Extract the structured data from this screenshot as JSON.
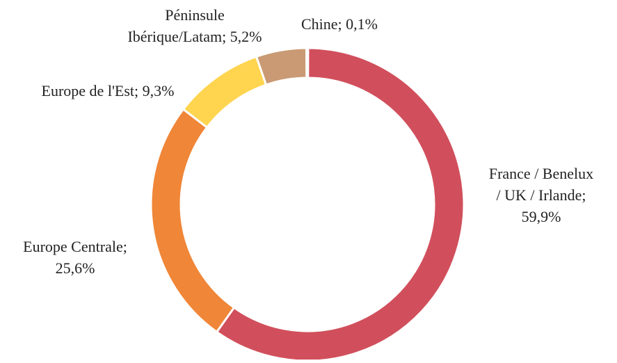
{
  "chart_data": {
    "type": "pie",
    "variant": "donut",
    "title": "",
    "start_angle_deg": 0,
    "direction": "clockwise",
    "slices": [
      {
        "label_lines": [
          "France / Benelux",
          "/ UK / Irlande;",
          "59,9%"
        ],
        "value": 59.9,
        "color": "#D14F5C"
      },
      {
        "label_lines": [
          "Europe Centrale;",
          "25,6%"
        ],
        "value": 25.6,
        "color": "#F08637"
      },
      {
        "label_lines": [
          "Europe de l'Est; 9,3%"
        ],
        "value": 9.3,
        "color": "#FFD44F"
      },
      {
        "label_lines": [
          "Péninsule",
          "Ibérique/Latam; 5,2%"
        ],
        "value": 5.2,
        "color": "#C99A73"
      },
      {
        "label_lines": [
          "Chine; 0,1%"
        ],
        "value": 0.1,
        "color": "#9E6B47"
      }
    ]
  }
}
